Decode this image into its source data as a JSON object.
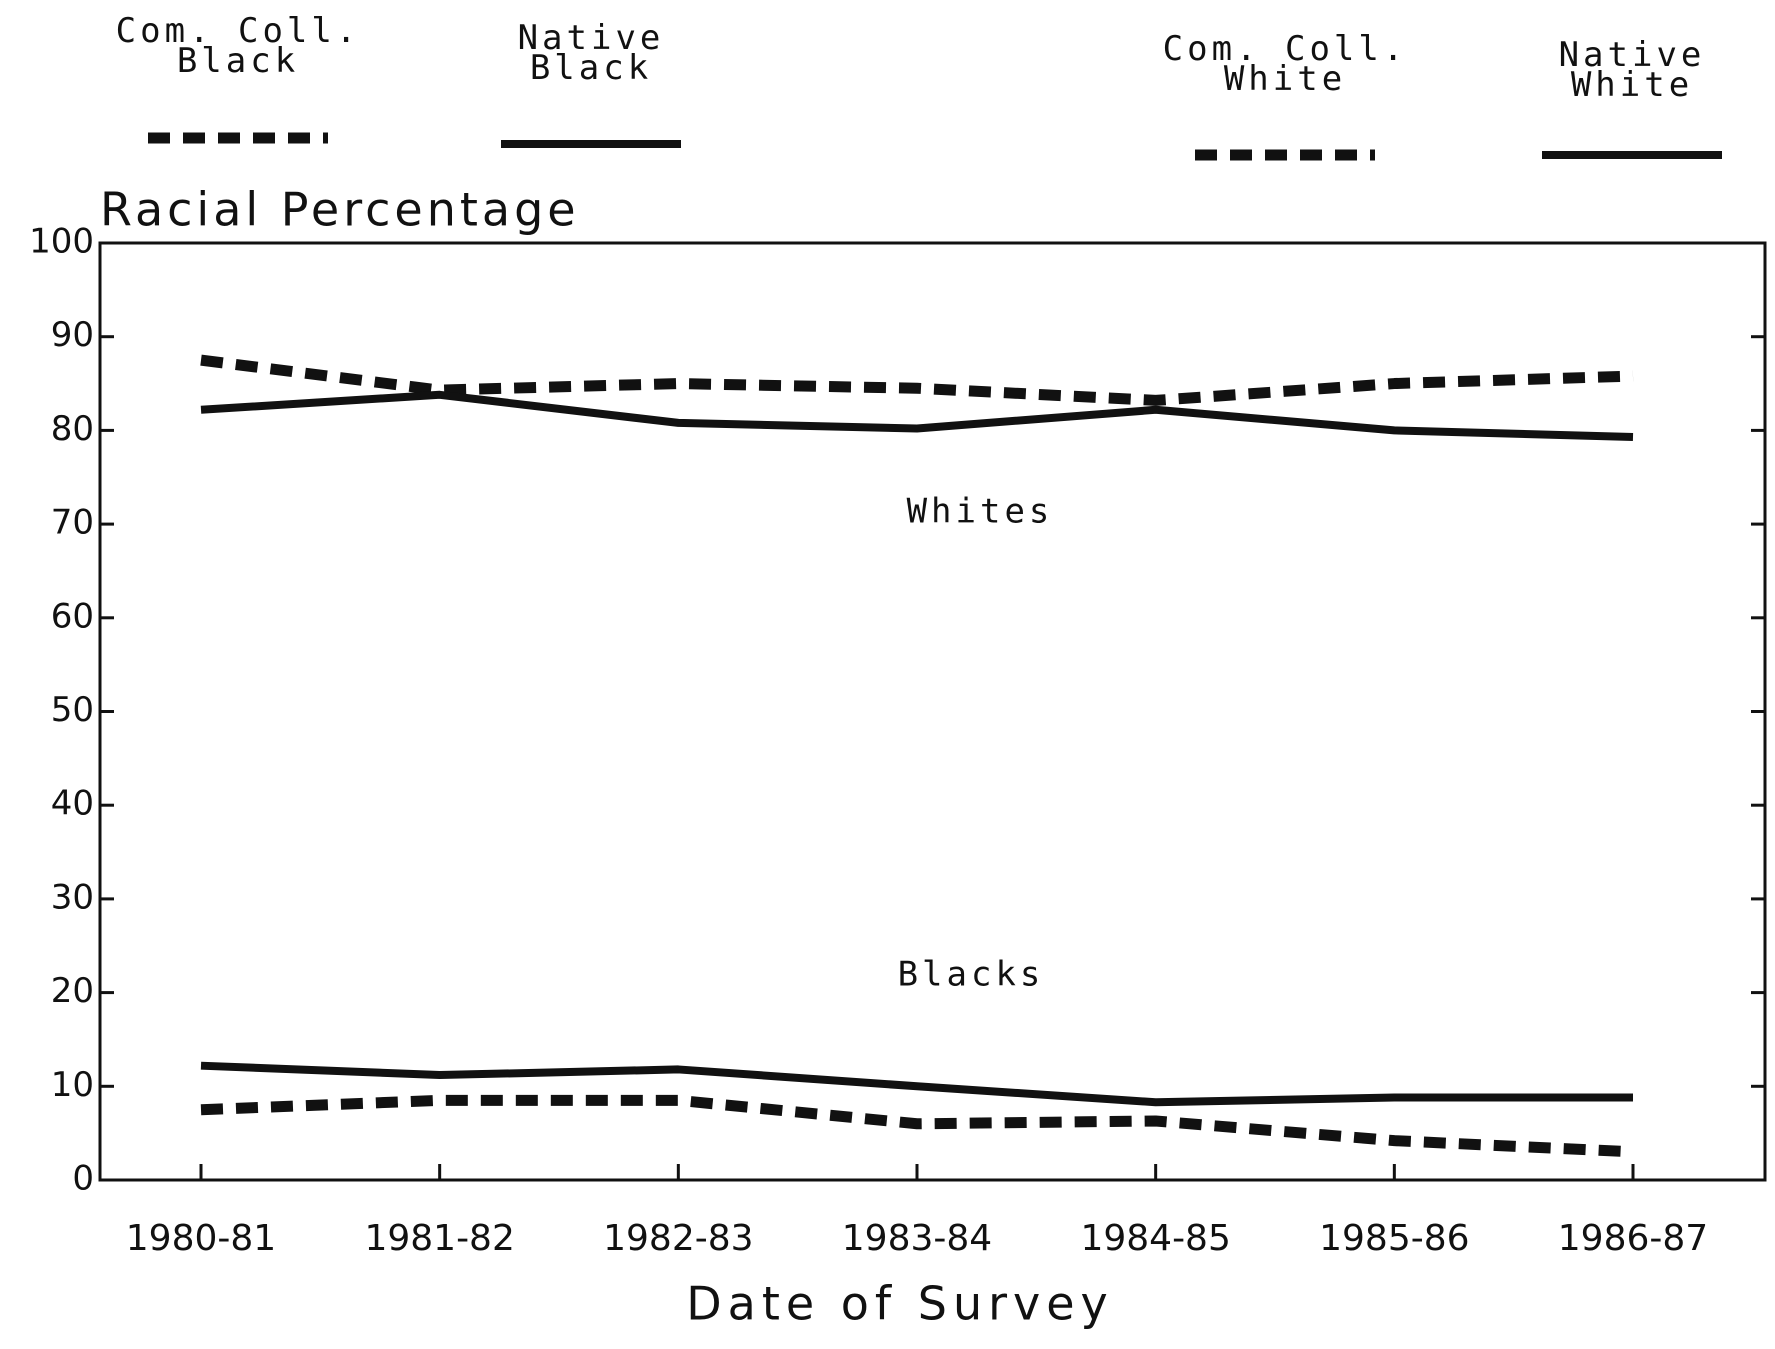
{
  "chart_data": {
    "type": "line",
    "y_label": "Racial Percentage",
    "x_label": "Date of Survey",
    "categories": [
      "1980-81",
      "1981-82",
      "1982-83",
      "1983-84",
      "1984-85",
      "1985-86",
      "1986-87"
    ],
    "series": [
      {
        "name": "Com. Coll.\nBlack",
        "color": "#111111",
        "dashed": true,
        "values": [
          7.5,
          8.5,
          8.5,
          6,
          6.3,
          4.2,
          3
        ]
      },
      {
        "name": "Native\nBlack",
        "color": "#111111",
        "dashed": false,
        "values": [
          12.2,
          11.2,
          11.8,
          10,
          8.3,
          8.8,
          8.8
        ]
      },
      {
        "name": "Com. Coll.\nWhite",
        "color": "#111111",
        "dashed": true,
        "values": [
          87.5,
          84.3,
          85,
          84.5,
          83.2,
          85,
          85.8
        ]
      },
      {
        "name": "Native\nWhite",
        "color": "#111111",
        "dashed": false,
        "values": [
          82.2,
          83.8,
          80.8,
          80.2,
          82.2,
          80,
          79.3
        ]
      }
    ],
    "annotations": [
      "Whites",
      "Blacks"
    ],
    "ylim": [
      0,
      100
    ],
    "yticks": [
      0,
      10,
      20,
      30,
      40,
      50,
      60,
      70,
      80,
      90,
      100
    ]
  }
}
